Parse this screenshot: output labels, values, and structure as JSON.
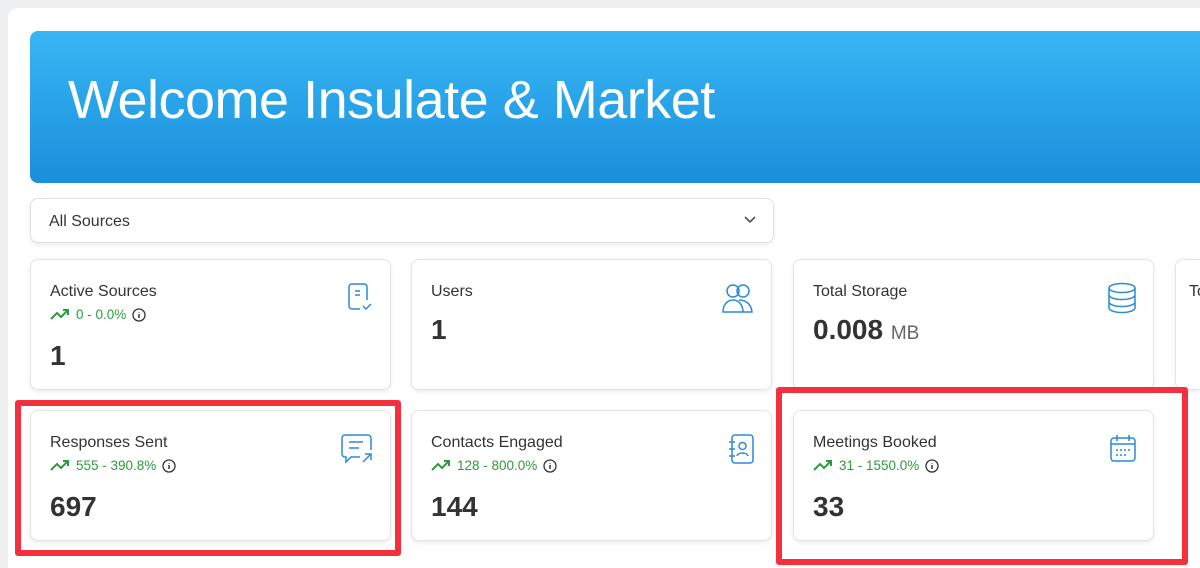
{
  "banner": {
    "title": "Welcome Insulate & Market",
    "color": "#1f95e0"
  },
  "source_select": {
    "value": "All Sources"
  },
  "cards": [
    {
      "title": "Active Sources",
      "trend": "0 - 0.0%",
      "value": "1",
      "icon": "document-check-icon"
    },
    {
      "title": "Users",
      "value": "1",
      "icon": "users-icon"
    },
    {
      "title": "Total Storage",
      "value": "0.008",
      "unit": "MB",
      "icon": "database-icon"
    },
    {
      "title": "To"
    },
    {
      "title": "Responses Sent",
      "trend": "555 - 390.8%",
      "value": "697",
      "icon": "message-send-icon"
    },
    {
      "title": "Contacts Engaged",
      "trend": "128 - 800.0%",
      "value": "144",
      "icon": "contact-book-icon"
    },
    {
      "title": "Meetings Booked",
      "trend": "31 - 1550.0%",
      "value": "33",
      "icon": "calendar-icon"
    }
  ],
  "colors": {
    "trend": "#2e9a3e",
    "icon": "#2a8ad6",
    "highlight": "#f4303f"
  }
}
